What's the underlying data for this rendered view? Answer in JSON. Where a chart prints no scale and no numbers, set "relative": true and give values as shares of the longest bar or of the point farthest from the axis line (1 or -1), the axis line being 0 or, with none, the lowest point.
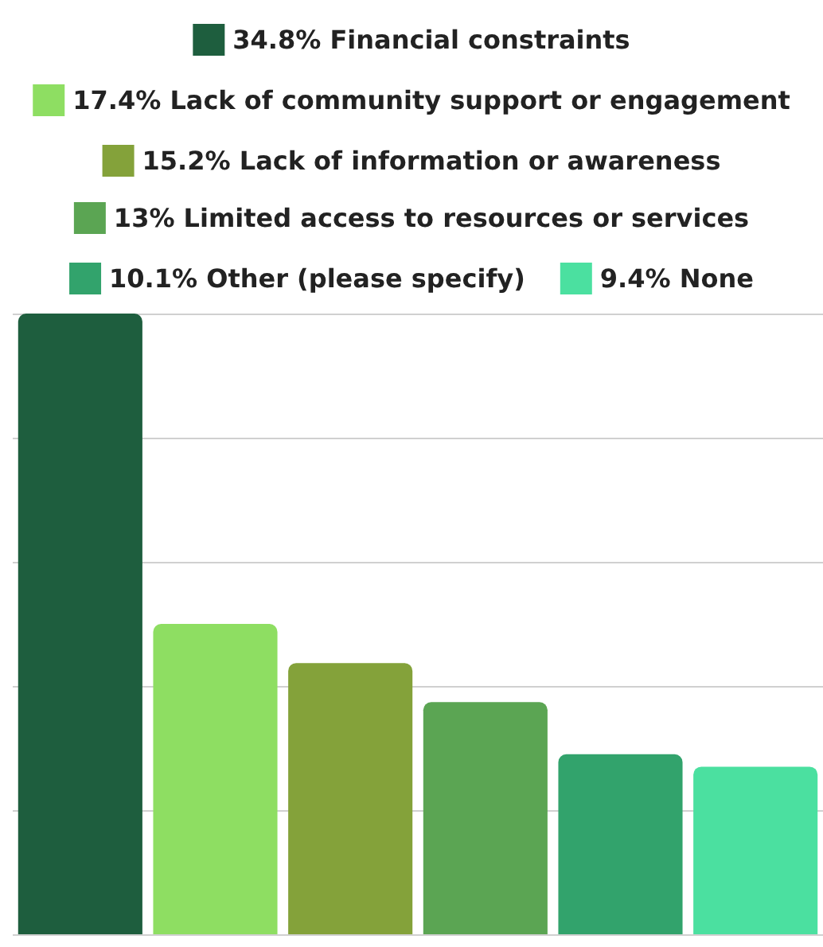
{
  "chart_data": {
    "type": "bar",
    "categories": [
      null,
      null,
      null,
      null,
      null,
      null
    ],
    "stacked": true,
    "grid": "y",
    "legend": "top",
    "relative": true,
    "series": [
      {
        "name": "34.8% Financial constraints",
        "color": "#1e5e3e",
        "values": [
          1,
          null,
          null,
          null,
          null,
          null
        ]
      },
      {
        "name": "17.4% Lack of community support or engagement",
        "color": "#8ede62",
        "values": [
          null,
          0.5,
          null,
          null,
          null,
          null
        ]
      },
      {
        "name": "15.2% Lack of information or awareness",
        "color": "#84a23a",
        "values": [
          null,
          null,
          0.437,
          null,
          null,
          null
        ]
      },
      {
        "name": "13% Limited access to resources or services",
        "color": "#5ba553",
        "values": [
          null,
          null,
          null,
          0.374,
          null,
          null
        ]
      },
      {
        "name": "10.1% Other (please specify)",
        "color": "#32a36c",
        "values": [
          null,
          null,
          null,
          null,
          0.29,
          null
        ]
      },
      {
        "name": "9.4% None",
        "color": "#4be0a0",
        "values": [
          null,
          null,
          null,
          null,
          null,
          0.27
        ]
      }
    ]
  }
}
